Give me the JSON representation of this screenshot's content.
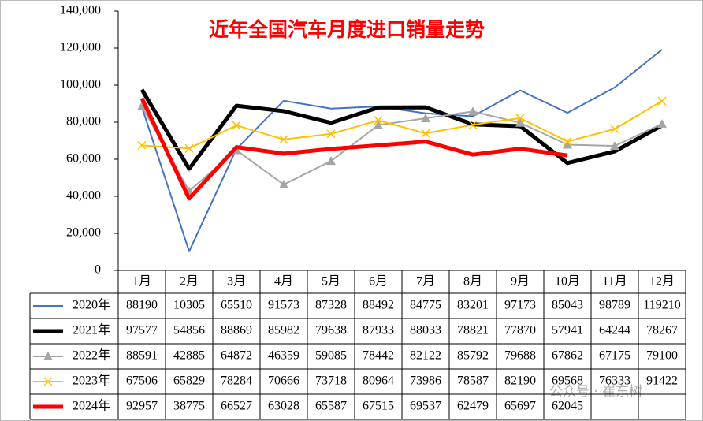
{
  "chart_data": {
    "type": "line",
    "title": "近年全国汽车月度进口销量走势",
    "watermark": "公众号 · 崔东树",
    "categories": [
      "1月",
      "2月",
      "3月",
      "4月",
      "5月",
      "6月",
      "7月",
      "8月",
      "9月",
      "10月",
      "11月",
      "12月"
    ],
    "series": [
      {
        "name": "2020年",
        "color": "#4472c4",
        "marker": "none",
        "values": [
          88190,
          10305,
          65510,
          91573,
          87328,
          88492,
          84775,
          83201,
          97173,
          85043,
          98789,
          119210
        ]
      },
      {
        "name": "2021年",
        "color": "#000000",
        "marker": "none",
        "values": [
          97577,
          54856,
          88869,
          85982,
          79638,
          87933,
          88033,
          78821,
          77870,
          57941,
          64244,
          78267
        ]
      },
      {
        "name": "2022年",
        "color": "#a5a5a5",
        "marker": "triangle",
        "values": [
          88591,
          42885,
          64872,
          46359,
          59085,
          78442,
          82122,
          85792,
          79688,
          67862,
          67175,
          79100
        ]
      },
      {
        "name": "2023年",
        "color": "#ffc000",
        "marker": "x",
        "values": [
          67506,
          65829,
          78284,
          70666,
          73718,
          80964,
          73986,
          78587,
          82190,
          69568,
          76333,
          91422
        ]
      },
      {
        "name": "2024年",
        "color": "#ff0000",
        "marker": "none",
        "values": [
          92957,
          38775,
          66527,
          63028,
          65587,
          67515,
          69537,
          62479,
          65697,
          62045,
          null,
          null
        ]
      }
    ],
    "ylim": [
      0,
      140000
    ],
    "yticks": [
      0,
      {
        "value": 20000,
        "label": "20,000"
      },
      {
        "value": 40000,
        "label": "40,000"
      },
      {
        "value": 60000,
        "label": "60,000"
      },
      {
        "value": 80000,
        "label": "80,000"
      },
      {
        "value": 100000,
        "label": "100,000"
      },
      {
        "value": 120000,
        "label": "120,000"
      },
      {
        "value": 140000,
        "label": "140,000"
      }
    ],
    "grid": false
  }
}
